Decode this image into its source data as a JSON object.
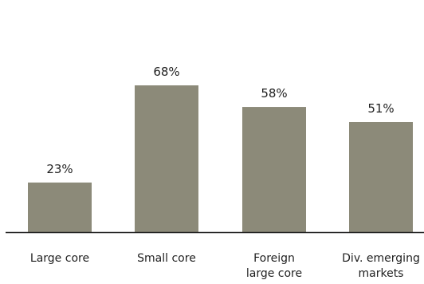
{
  "chart_data": {
    "type": "bar",
    "categories": [
      [
        "Large core"
      ],
      [
        "Small core"
      ],
      [
        "Foreign",
        "large core"
      ],
      [
        "Div. emerging",
        "markets"
      ]
    ],
    "values": [
      23,
      68,
      58,
      51
    ],
    "value_labels": [
      "23%",
      "68%",
      "58%",
      "51%"
    ],
    "ylim": [
      0,
      68
    ],
    "grid": false,
    "bar_color": "#8c8a79",
    "axis_color": "#1f1f1f",
    "text_color": "#1f1f1f"
  }
}
